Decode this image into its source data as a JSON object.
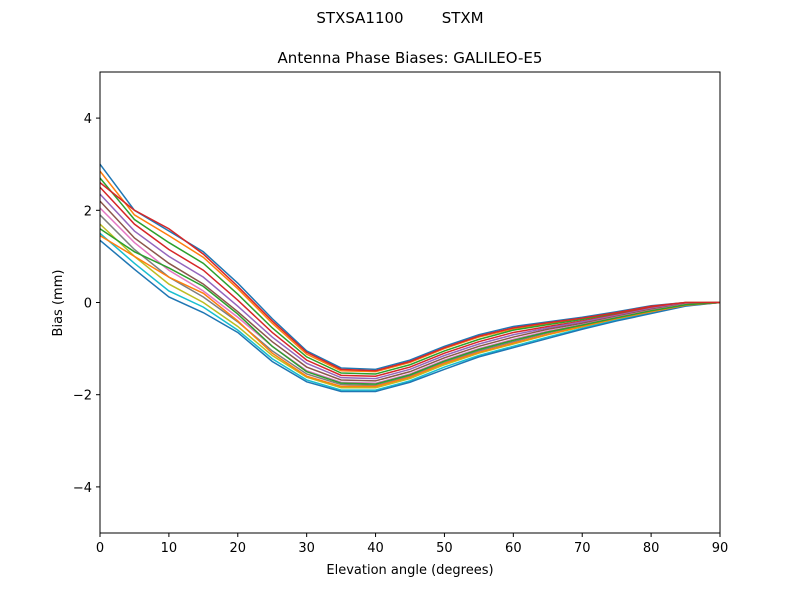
{
  "figure": {
    "suptitle": "STXSA1100        STXM"
  },
  "chart_data": {
    "type": "line",
    "title": "Antenna Phase Biases: GALILEO-E5",
    "xlabel": "Elevation angle (degrees)",
    "ylabel": "Bias (mm)",
    "xlim": [
      0,
      90
    ],
    "ylim": [
      -5,
      5
    ],
    "xticks": [
      0,
      10,
      20,
      30,
      40,
      50,
      60,
      70,
      80,
      90
    ],
    "yticks": [
      -4,
      -2,
      0,
      2,
      4
    ],
    "ytick_labels": [
      "−4",
      "−2",
      "0",
      "2",
      "4"
    ],
    "grid": false,
    "legend": "none",
    "x": [
      0,
      5,
      10,
      15,
      20,
      25,
      30,
      35,
      40,
      45,
      50,
      55,
      60,
      65,
      70,
      75,
      80,
      85,
      90
    ],
    "colors": [
      "#1f77b4",
      "#ff7f0e",
      "#2ca02c",
      "#d62728",
      "#9467bd",
      "#8c564b",
      "#e377c2",
      "#7f7f7f",
      "#bcbd22",
      "#17becf"
    ],
    "series": [
      {
        "values": [
          3.0,
          2.0,
          1.55,
          1.1,
          0.42,
          -0.35,
          -1.05,
          -1.42,
          -1.45,
          -1.25,
          -0.95,
          -0.7,
          -0.52,
          -0.42,
          -0.32,
          -0.2,
          -0.07,
          0.0,
          0.0
        ]
      },
      {
        "values": [
          2.85,
          1.9,
          1.45,
          0.98,
          0.3,
          -0.45,
          -1.12,
          -1.48,
          -1.5,
          -1.3,
          -1.0,
          -0.75,
          -0.57,
          -0.46,
          -0.35,
          -0.23,
          -0.09,
          0.0,
          0.0
        ]
      },
      {
        "values": [
          2.7,
          1.8,
          1.3,
          0.85,
          0.18,
          -0.55,
          -1.18,
          -1.53,
          -1.55,
          -1.35,
          -1.05,
          -0.8,
          -0.6,
          -0.48,
          -0.37,
          -0.24,
          -0.1,
          -0.01,
          0.0
        ]
      },
      {
        "values": [
          2.5,
          1.7,
          1.15,
          0.7,
          0.05,
          -0.65,
          -1.25,
          -1.58,
          -1.6,
          -1.4,
          -1.1,
          -0.85,
          -0.65,
          -0.52,
          -0.4,
          -0.26,
          -0.11,
          -0.01,
          0.0
        ]
      },
      {
        "values": [
          2.35,
          1.55,
          1.0,
          0.55,
          -0.08,
          -0.75,
          -1.32,
          -1.63,
          -1.65,
          -1.45,
          -1.15,
          -0.9,
          -0.7,
          -0.55,
          -0.42,
          -0.28,
          -0.13,
          -0.02,
          0.0
        ]
      },
      {
        "values": [
          2.2,
          1.4,
          0.85,
          0.4,
          -0.2,
          -0.85,
          -1.4,
          -1.68,
          -1.7,
          -1.5,
          -1.2,
          -0.95,
          -0.75,
          -0.58,
          -0.45,
          -0.3,
          -0.15,
          -0.03,
          0.0
        ]
      },
      {
        "values": [
          2.05,
          1.3,
          0.7,
          0.25,
          -0.32,
          -0.95,
          -1.48,
          -1.73,
          -1.75,
          -1.55,
          -1.25,
          -1.0,
          -0.8,
          -0.62,
          -0.48,
          -0.32,
          -0.17,
          -0.04,
          0.0
        ]
      },
      {
        "values": [
          1.9,
          1.15,
          0.55,
          0.12,
          -0.42,
          -1.05,
          -1.55,
          -1.78,
          -1.8,
          -1.6,
          -1.3,
          -1.05,
          -0.85,
          -0.66,
          -0.5,
          -0.34,
          -0.19,
          -0.05,
          0.0
        ]
      },
      {
        "values": [
          1.7,
          1.0,
          0.4,
          0.0,
          -0.52,
          -1.15,
          -1.62,
          -1.85,
          -1.85,
          -1.65,
          -1.35,
          -1.1,
          -0.9,
          -0.7,
          -0.53,
          -0.36,
          -0.2,
          -0.06,
          0.0
        ]
      },
      {
        "values": [
          1.5,
          0.85,
          0.25,
          -0.1,
          -0.6,
          -1.22,
          -1.68,
          -1.9,
          -1.9,
          -1.7,
          -1.4,
          -1.15,
          -0.95,
          -0.75,
          -0.56,
          -0.38,
          -0.22,
          -0.07,
          0.0
        ]
      },
      {
        "values": [
          1.35,
          0.72,
          0.12,
          -0.22,
          -0.65,
          -1.28,
          -1.72,
          -1.93,
          -1.93,
          -1.73,
          -1.45,
          -1.18,
          -0.98,
          -0.78,
          -0.58,
          -0.4,
          -0.24,
          -0.08,
          0.0
        ]
      },
      {
        "values": [
          1.45,
          1.0,
          0.55,
          0.2,
          -0.4,
          -1.1,
          -1.6,
          -1.82,
          -1.82,
          -1.62,
          -1.32,
          -1.08,
          -0.88,
          -0.69,
          -0.52,
          -0.35,
          -0.2,
          -0.06,
          0.0
        ]
      },
      {
        "values": [
          1.6,
          1.1,
          0.75,
          0.35,
          -0.25,
          -0.95,
          -1.5,
          -1.75,
          -1.77,
          -1.57,
          -1.27,
          -1.02,
          -0.82,
          -0.64,
          -0.49,
          -0.33,
          -0.18,
          -0.05,
          0.0
        ]
      },
      {
        "values": [
          2.6,
          2.0,
          1.6,
          1.05,
          0.35,
          -0.4,
          -1.08,
          -1.45,
          -1.48,
          -1.28,
          -0.98,
          -0.73,
          -0.55,
          -0.44,
          -0.34,
          -0.22,
          -0.08,
          0.0,
          0.0
        ]
      }
    ]
  }
}
